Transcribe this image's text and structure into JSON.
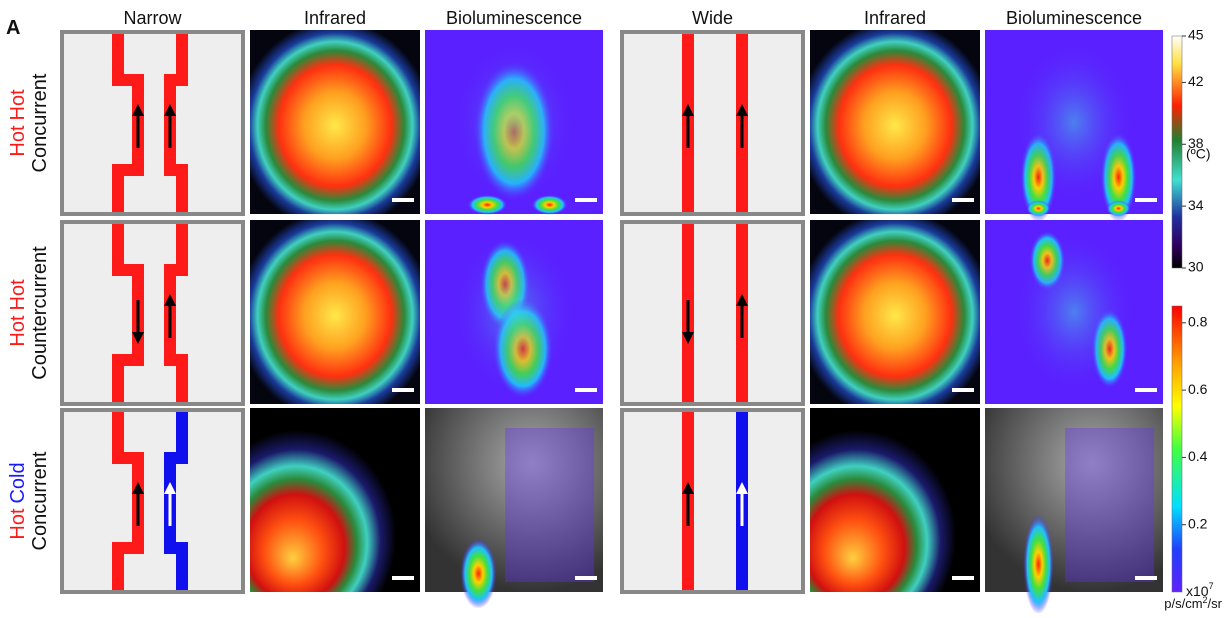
{
  "panel_label": "A",
  "columns": [
    "Narrow",
    "Infrared",
    "Bioluminescence",
    "Wide",
    "Infrared",
    "Bioluminescence"
  ],
  "rows": [
    {
      "words": [
        {
          "text": "Hot",
          "color": "#ff1a1a"
        },
        {
          "text": "Hot",
          "color": "#ff1a1a"
        }
      ],
      "flow": "Concurrent"
    },
    {
      "words": [
        {
          "text": "Hot",
          "color": "#ff1a1a"
        },
        {
          "text": "Hot",
          "color": "#ff1a1a"
        }
      ],
      "flow": "Countercurrent"
    },
    {
      "words": [
        {
          "text": "Hot",
          "color": "#ff1a1a"
        },
        {
          "text": "Cold",
          "color": "#1a1aff"
        }
      ],
      "flow": "Concurrent"
    }
  ],
  "temperature_scale": {
    "lim": [
      30,
      45
    ],
    "ticks": [
      45,
      42,
      38,
      34,
      30
    ],
    "unit": "(ºC)"
  },
  "radiance_scale": {
    "lim": [
      0,
      0.85
    ],
    "ticks": [
      0.8,
      0.6,
      0.4,
      0.2
    ],
    "multiplier": {
      "base": "x10",
      "sup": "7"
    },
    "unit": {
      "a": "p/s/cm",
      "sup": "2",
      "b": "/sr"
    }
  }
}
